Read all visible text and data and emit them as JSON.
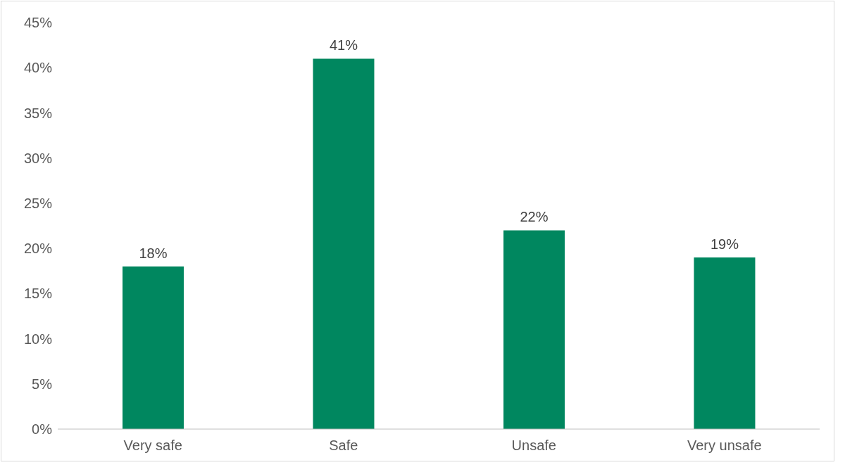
{
  "chart_data": {
    "type": "bar",
    "categories": [
      "Very safe",
      "Safe",
      "Unsafe",
      "Very unsafe"
    ],
    "values": [
      18,
      41,
      22,
      19
    ],
    "value_labels": [
      "18%",
      "41%",
      "22%",
      "19%"
    ],
    "color": "#00875f",
    "ylim": [
      0,
      45
    ],
    "yticks": [
      {
        "value": 0,
        "label": "0%"
      },
      {
        "value": 5,
        "label": "5%"
      },
      {
        "value": 10,
        "label": "10%"
      },
      {
        "value": 15,
        "label": "15%"
      },
      {
        "value": 20,
        "label": "20%"
      },
      {
        "value": 25,
        "label": "25%"
      },
      {
        "value": 30,
        "label": "30%"
      },
      {
        "value": 35,
        "label": "35%"
      },
      {
        "value": 40,
        "label": "40%"
      },
      {
        "value": 45,
        "label": "45%"
      }
    ]
  }
}
